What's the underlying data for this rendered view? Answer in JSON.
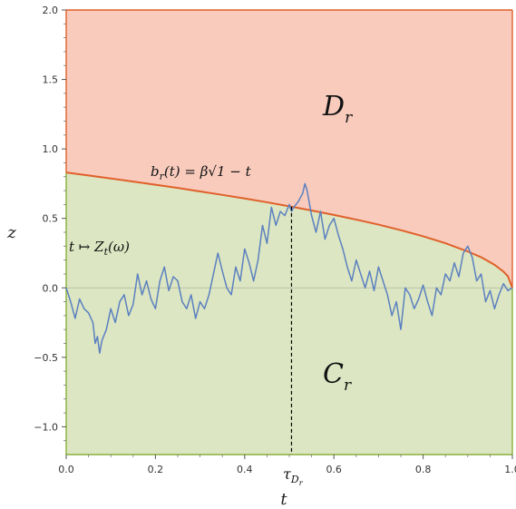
{
  "chart_data": {
    "type": "line",
    "xlabel": "t",
    "ylabel": "z",
    "xlim": [
      0,
      1
    ],
    "ylim": [
      -1.2,
      2.0
    ],
    "xticks": [
      {
        "value": 0.0,
        "label": "0.0"
      },
      {
        "value": 0.2,
        "label": "0.2"
      },
      {
        "value": 0.4,
        "label": "0.4"
      },
      {
        "value": 0.6,
        "label": "0.6"
      },
      {
        "value": 0.8,
        "label": "0.8"
      },
      {
        "value": 1.0,
        "label": "1.0"
      }
    ],
    "yticks": [
      {
        "value": -1.0,
        "label": "−1.0"
      },
      {
        "value": -0.5,
        "label": "−0.5"
      },
      {
        "value": 0.0,
        "label": "0.0"
      },
      {
        "value": 0.5,
        "label": "0.5"
      },
      {
        "value": 1.0,
        "label": "1.0"
      },
      {
        "value": 1.5,
        "label": "1.5"
      },
      {
        "value": 2.0,
        "label": "2.0"
      }
    ],
    "colors": {
      "region_D": "#f8cbbd",
      "region_C": "#dce6c2",
      "boundary": "#e0602a",
      "region_C_edge": "#8ab03c",
      "path": "#5b80c0",
      "stopping_line": "#000000"
    },
    "boundary": {
      "label_main": "b",
      "label_sub": "r",
      "label_rest": "(t) = β√1 − t",
      "beta": 0.83,
      "x": [
        0.0,
        0.05,
        0.1,
        0.15,
        0.2,
        0.25,
        0.3,
        0.35,
        0.4,
        0.45,
        0.5,
        0.55,
        0.6,
        0.65,
        0.7,
        0.75,
        0.8,
        0.85,
        0.9,
        0.93,
        0.96,
        0.98,
        0.99,
        1.0
      ],
      "y": [
        0.83,
        0.809,
        0.787,
        0.765,
        0.742,
        0.719,
        0.694,
        0.669,
        0.643,
        0.616,
        0.587,
        0.557,
        0.525,
        0.491,
        0.455,
        0.415,
        0.371,
        0.321,
        0.262,
        0.22,
        0.166,
        0.117,
        0.083,
        0.0
      ]
    },
    "stopping_time": {
      "x": 0.505,
      "label_main": "τ",
      "label_sub": "D",
      "label_subsub": "r"
    },
    "regions": {
      "D": {
        "label_main": "D",
        "label_sub": "r",
        "y_top": 2.0
      },
      "C": {
        "label_main": "C",
        "label_sub": "r",
        "y_bottom": -1.2
      }
    },
    "path": {
      "label": "t ↦ Z",
      "label_sub": "t",
      "label_rest": "(ω)",
      "x": [
        0.0,
        0.01,
        0.02,
        0.03,
        0.04,
        0.05,
        0.06,
        0.065,
        0.07,
        0.075,
        0.08,
        0.09,
        0.1,
        0.11,
        0.12,
        0.13,
        0.14,
        0.15,
        0.16,
        0.17,
        0.18,
        0.19,
        0.2,
        0.21,
        0.22,
        0.23,
        0.24,
        0.25,
        0.26,
        0.27,
        0.28,
        0.29,
        0.3,
        0.31,
        0.32,
        0.33,
        0.34,
        0.35,
        0.36,
        0.37,
        0.38,
        0.39,
        0.4,
        0.41,
        0.42,
        0.43,
        0.44,
        0.45,
        0.46,
        0.47,
        0.48,
        0.49,
        0.5,
        0.505,
        0.51,
        0.52,
        0.53,
        0.535,
        0.54,
        0.55,
        0.56,
        0.57,
        0.58,
        0.59,
        0.6,
        0.61,
        0.62,
        0.63,
        0.64,
        0.65,
        0.66,
        0.67,
        0.68,
        0.69,
        0.7,
        0.71,
        0.72,
        0.73,
        0.74,
        0.75,
        0.76,
        0.77,
        0.78,
        0.79,
        0.8,
        0.81,
        0.82,
        0.83,
        0.84,
        0.85,
        0.86,
        0.87,
        0.88,
        0.89,
        0.9,
        0.91,
        0.92,
        0.93,
        0.94,
        0.95,
        0.96,
        0.97,
        0.98,
        0.99,
        1.0
      ],
      "y": [
        0.0,
        -0.1,
        -0.22,
        -0.08,
        -0.15,
        -0.18,
        -0.25,
        -0.4,
        -0.35,
        -0.47,
        -0.38,
        -0.3,
        -0.15,
        -0.25,
        -0.1,
        -0.05,
        -0.2,
        -0.12,
        0.1,
        -0.05,
        0.05,
        -0.08,
        -0.15,
        0.05,
        0.15,
        -0.02,
        0.08,
        0.05,
        -0.1,
        -0.15,
        -0.05,
        -0.22,
        -0.1,
        -0.15,
        -0.05,
        0.1,
        0.25,
        0.12,
        0.0,
        -0.05,
        0.15,
        0.05,
        0.28,
        0.18,
        0.05,
        0.2,
        0.45,
        0.32,
        0.58,
        0.45,
        0.55,
        0.52,
        0.6,
        0.55,
        0.58,
        0.62,
        0.68,
        0.75,
        0.7,
        0.52,
        0.4,
        0.55,
        0.35,
        0.45,
        0.5,
        0.38,
        0.28,
        0.15,
        0.05,
        0.2,
        0.1,
        0.0,
        0.12,
        -0.02,
        0.15,
        0.05,
        -0.05,
        -0.2,
        -0.1,
        -0.3,
        0.0,
        -0.05,
        -0.15,
        -0.08,
        0.02,
        -0.1,
        -0.2,
        0.0,
        -0.05,
        0.1,
        0.05,
        0.18,
        0.08,
        0.25,
        0.3,
        0.22,
        0.05,
        0.1,
        -0.1,
        -0.02,
        -0.15,
        -0.05,
        0.03,
        -0.02,
        0.0
      ]
    }
  }
}
